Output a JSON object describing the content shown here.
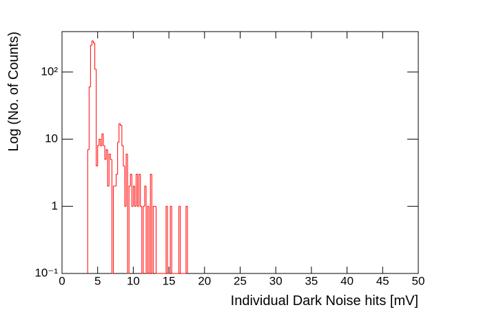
{
  "chart_data": {
    "type": "histogram",
    "x_label": "Individual Dark Noise hits [mV]",
    "y_label": "Log (No. of Counts)",
    "color": "#ff0000",
    "log_y": true,
    "xlim": [
      0,
      50
    ],
    "xticks": [
      0,
      5,
      10,
      15,
      20,
      25,
      30,
      35,
      40,
      45,
      50
    ],
    "ylim": [
      0.1,
      400
    ],
    "yticks": [
      {
        "value": 0.1,
        "label": "10⁻¹"
      },
      1,
      10,
      {
        "value": 100,
        "label": "10²"
      }
    ],
    "bins": [
      3.6,
      3.8,
      4.0,
      4.2,
      4.4,
      4.6,
      4.8,
      5.0,
      5.2,
      5.4,
      5.6,
      5.8,
      6.0,
      6.2,
      6.4,
      6.6,
      6.8,
      7.0,
      7.2,
      7.4,
      7.6,
      7.8,
      8.0,
      8.2,
      8.4,
      8.6,
      8.8,
      9.0,
      9.2,
      9.4,
      9.6,
      9.8,
      10.0,
      10.2,
      10.4,
      10.6,
      10.8,
      11.0,
      11.2,
      11.4,
      11.6,
      11.8,
      12.0,
      12.2,
      12.4,
      12.6,
      12.8,
      13.0,
      13.2,
      13.4,
      13.6,
      13.8,
      14.0,
      14.2,
      14.4,
      14.6,
      14.8,
      15.0,
      15.2,
      15.4,
      15.6,
      15.8,
      16.0,
      16.2,
      16.4,
      16.6,
      16.8,
      17.0,
      17.2,
      17.4,
      17.6
    ],
    "values": [
      7,
      60,
      250,
      290,
      270,
      110,
      4,
      8,
      10,
      8,
      12,
      8,
      5,
      7,
      2,
      6,
      5,
      0,
      2,
      2,
      3,
      9,
      17,
      16,
      8,
      4,
      1,
      6,
      0,
      2,
      3,
      1,
      2,
      1,
      3,
      1,
      3,
      1,
      0,
      1,
      2,
      0,
      1,
      0,
      3,
      0,
      1,
      1,
      0,
      0,
      0,
      0,
      0,
      0,
      0,
      1,
      0,
      0,
      1,
      0,
      0,
      0,
      0,
      0,
      1,
      0,
      0,
      0,
      0,
      1
    ]
  }
}
